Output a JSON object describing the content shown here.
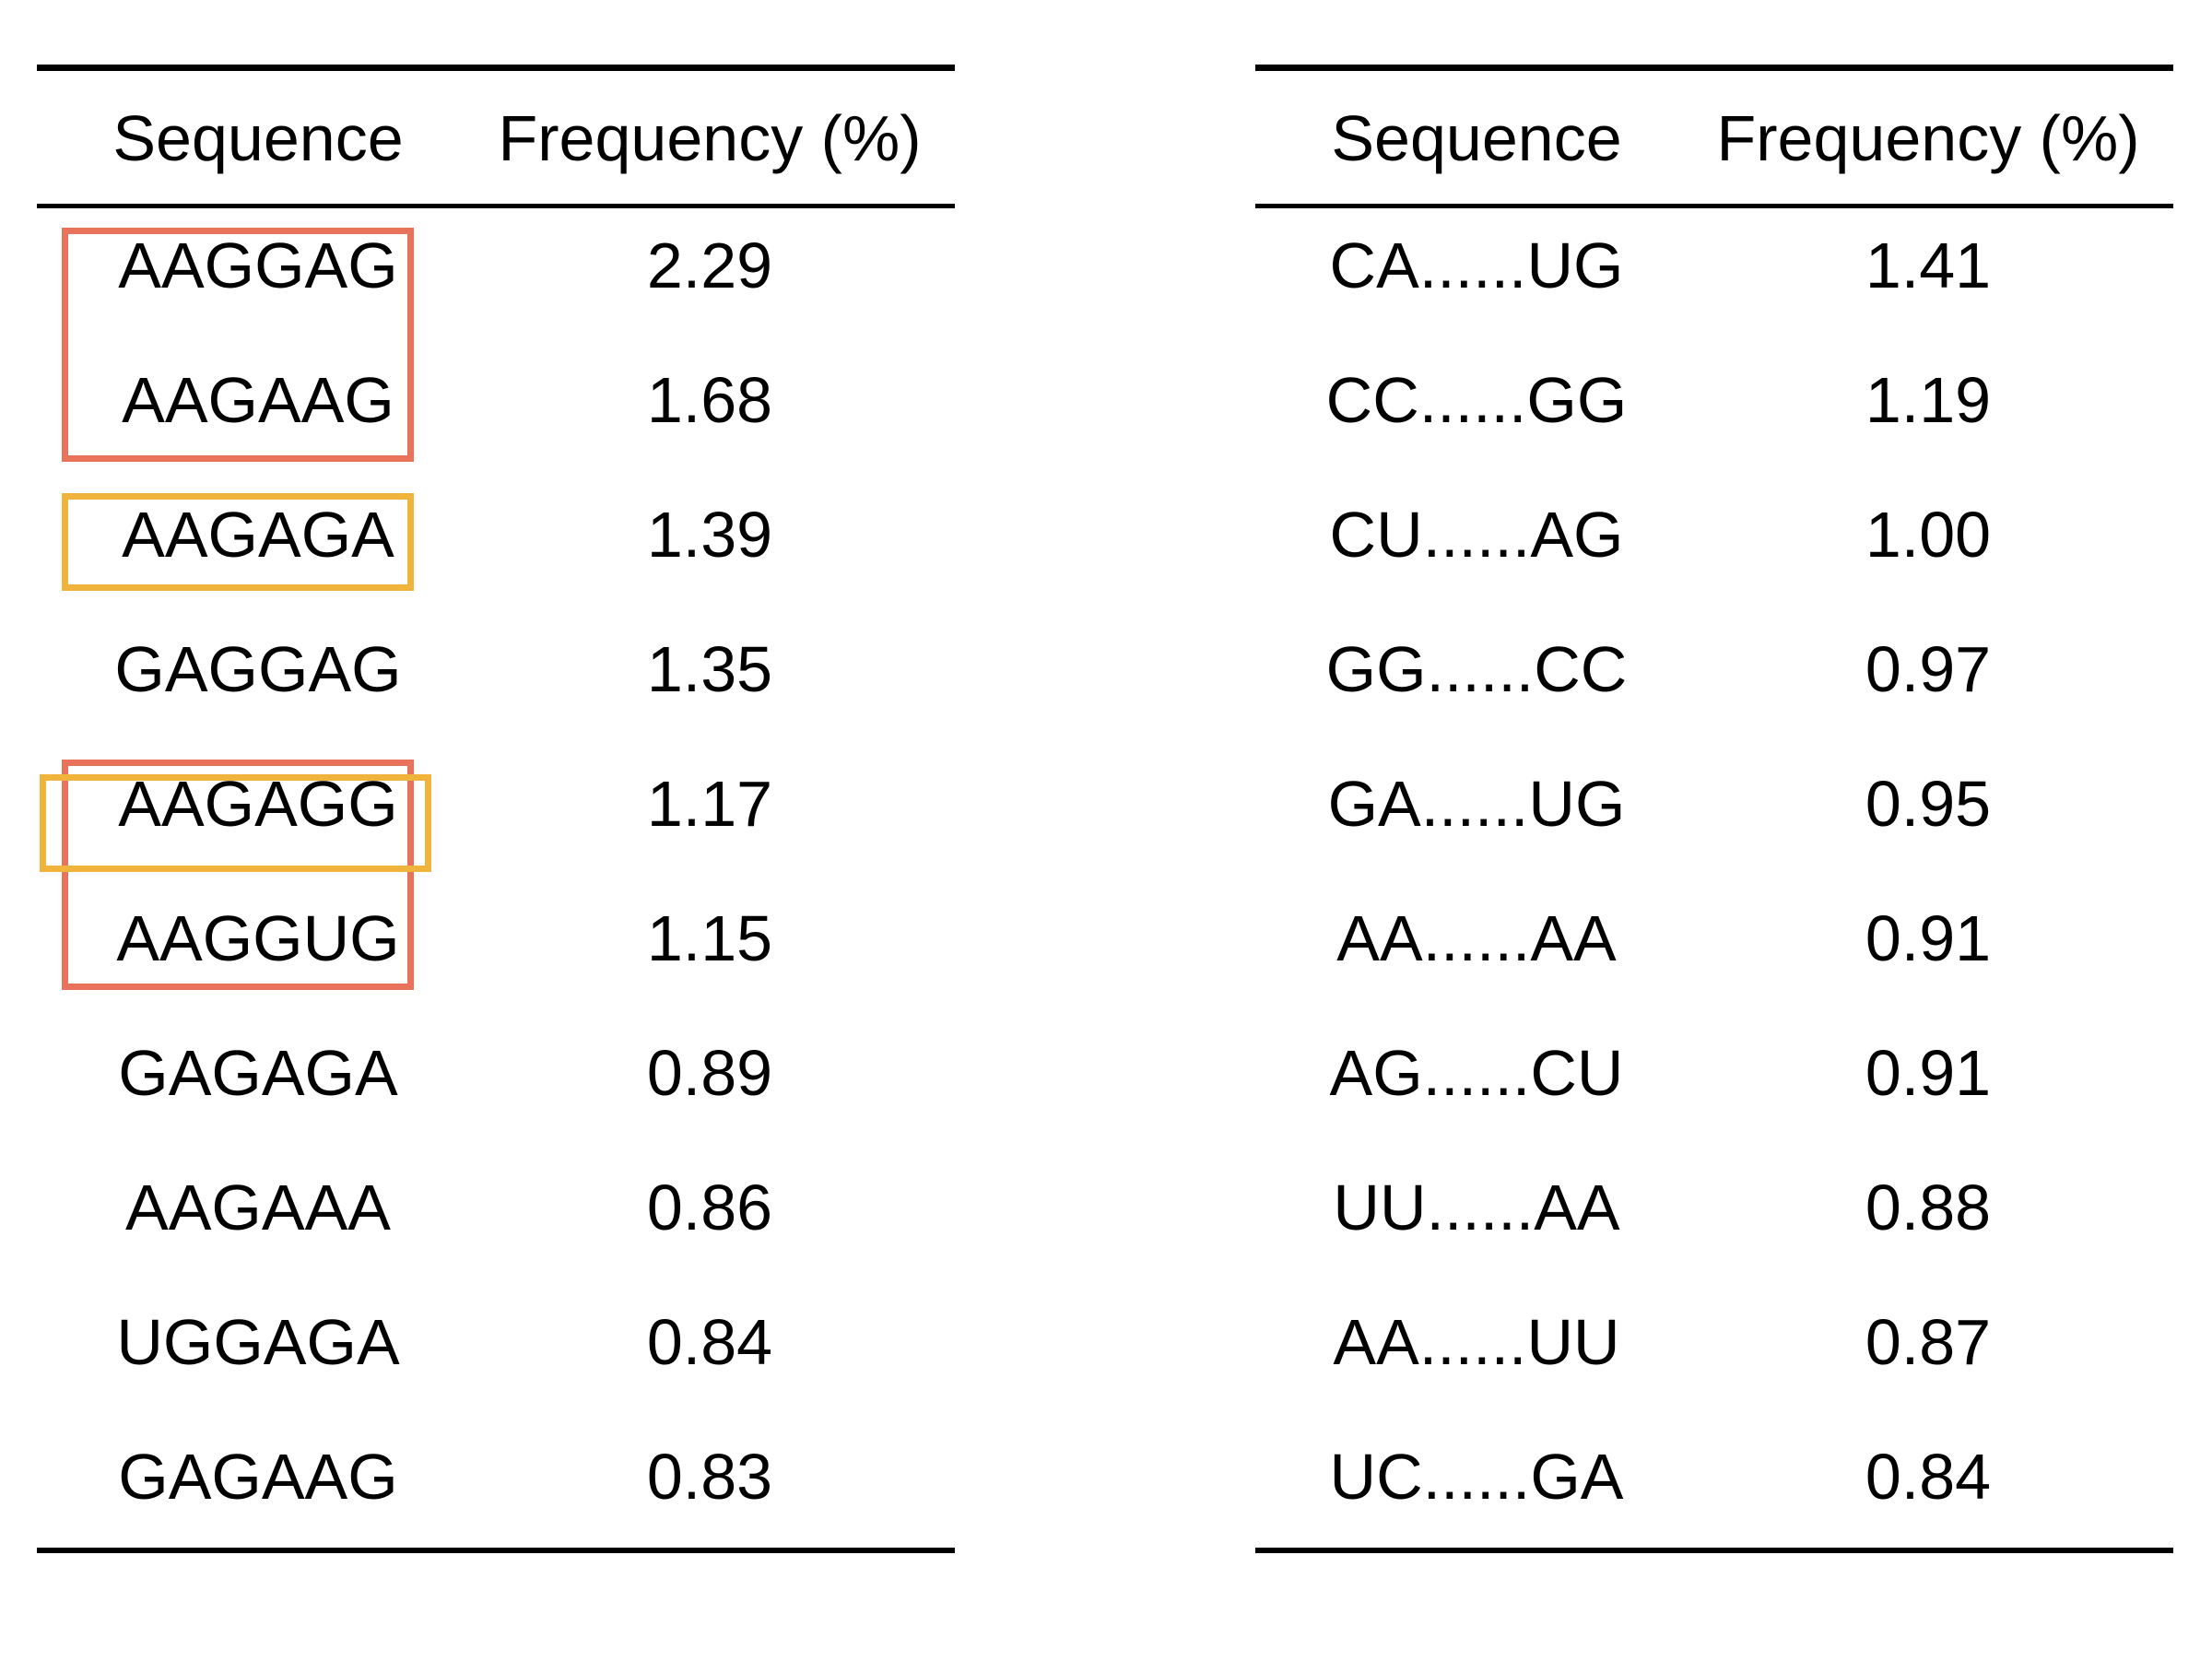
{
  "colors": {
    "red_box": "#E8735A",
    "orange_box": "#F0B33C"
  },
  "left_table": {
    "headers": [
      "Sequence",
      "Frequency (%)"
    ],
    "rows": [
      {
        "sequence": "AAGGAG",
        "frequency": "2.29"
      },
      {
        "sequence": "AAGAAG",
        "frequency": "1.68"
      },
      {
        "sequence": "AAGAGA",
        "frequency": "1.39"
      },
      {
        "sequence": "GAGGAG",
        "frequency": "1.35"
      },
      {
        "sequence": "AAGAGG",
        "frequency": "1.17"
      },
      {
        "sequence": "AAGGUG",
        "frequency": "1.15"
      },
      {
        "sequence": "GAGAGA",
        "frequency": "0.89"
      },
      {
        "sequence": "AAGAAA",
        "frequency": "0.86"
      },
      {
        "sequence": "UGGAGA",
        "frequency": "0.84"
      },
      {
        "sequence": "GAGAAG",
        "frequency": "0.83"
      }
    ],
    "highlights": [
      {
        "color": "red",
        "rows": [
          1,
          2
        ]
      },
      {
        "color": "orange",
        "rows": [
          3,
          3
        ]
      },
      {
        "color": "red",
        "rows": [
          5,
          6
        ]
      },
      {
        "color": "orange",
        "rows": [
          5,
          5
        ]
      }
    ]
  },
  "right_table": {
    "headers": [
      "Sequence",
      "Frequency (%)"
    ],
    "rows": [
      {
        "sequence": "CA......UG",
        "frequency": "1.41"
      },
      {
        "sequence": "CC......GG",
        "frequency": "1.19"
      },
      {
        "sequence": "CU......AG",
        "frequency": "1.00"
      },
      {
        "sequence": "GG......CC",
        "frequency": "0.97"
      },
      {
        "sequence": "GA......UG",
        "frequency": "0.95"
      },
      {
        "sequence": "AA......AA",
        "frequency": "0.91"
      },
      {
        "sequence": "AG......CU",
        "frequency": "0.91"
      },
      {
        "sequence": "UU......AA",
        "frequency": "0.88"
      },
      {
        "sequence": "AA......UU",
        "frequency": "0.87"
      },
      {
        "sequence": "UC......GA",
        "frequency": "0.84"
      }
    ]
  }
}
